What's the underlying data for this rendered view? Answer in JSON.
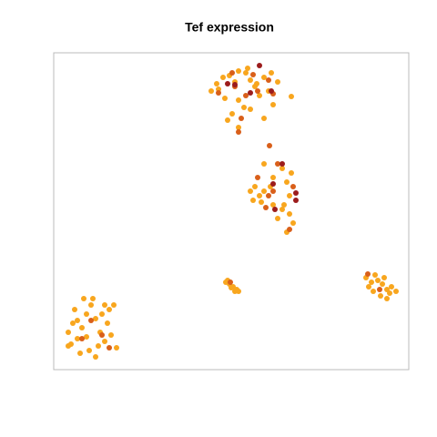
{
  "chart_data": {
    "type": "scatter",
    "title": "Tef expression",
    "xlim": [
      0,
      390
    ],
    "ylim": [
      0,
      348
    ],
    "series": [
      {
        "color": "#f8a61e",
        "x": [
          173,
          179,
          186,
          193,
          199,
          203,
          211,
          216,
          221,
          231,
          239,
          246,
          203,
          209,
          196,
          191,
          203,
          216,
          231,
          241,
          226,
          181,
          188,
          236,
          261,
          213,
          223,
          221,
          226,
          219,
          231,
          241,
          251,
          256,
          259,
          253,
          246,
          259,
          263,
          231,
          216,
          241,
          251,
          261,
          238,
          228,
          256,
          16,
          21,
          26,
          31,
          36,
          41,
          46,
          51,
          56,
          61,
          66,
          69,
          19,
          29,
          39,
          49,
          59,
          63,
          23,
          33,
          43,
          53,
          16,
          36,
          46,
          26,
          56,
          189,
          193,
          197,
          201,
          203,
          199,
          191,
          195,
          343,
          349,
          356,
          361,
          366,
          371,
          376,
          351,
          359,
          366,
          346,
          353,
          369,
          363
        ],
        "values": [
          306,
          314,
          321,
          323,
          316,
          328,
          326,
          318,
          311,
          321,
          326,
          316,
          296,
          288,
          281,
          274,
          266,
          286,
          276,
          291,
          301,
          308,
          298,
          306,
          300,
          331,
          314,
          201,
          191,
          186,
          196,
          211,
          221,
          206,
          191,
          181,
          166,
          171,
          161,
          226,
          196,
          181,
          176,
          216,
          201,
          184,
          151,
          41,
          51,
          34,
          46,
          61,
          71,
          56,
          41,
          31,
          66,
          71,
          24,
          28,
          18,
          21,
          26,
          51,
          38,
          66,
          78,
          78,
          61,
          26,
          36,
          14,
          54,
          71,
          96,
          94,
          91,
          88,
          86,
          86,
          98,
          90,
          101,
          96,
          98,
          94,
          88,
          91,
          86,
          86,
          81,
          78,
          91,
          104,
          84,
          101
        ]
      },
      {
        "color": "#d95f1a",
        "x": [
          181,
          199,
          211,
          224,
          236,
          206,
          219,
          241,
          196,
          203,
          224,
          236,
          246,
          263,
          241,
          237,
          259,
          233,
          31,
          53,
          41,
          61,
          358,
          345,
          194
        ],
        "values": [
          304,
          311,
          301,
          306,
          318,
          276,
          324,
          303,
          326,
          261,
          211,
          191,
          226,
          201,
          196,
          246,
          154,
          178,
          34,
          38,
          54,
          24,
          88,
          105,
          96
        ]
      },
      {
        "color": "#9c1c1c",
        "x": [
          226,
          199,
          216,
          239,
          191,
          241,
          266,
          251,
          266,
          243
        ],
        "values": [
          334,
          313,
          304,
          306,
          314,
          204,
          194,
          226,
          186,
          176
        ]
      }
    ]
  }
}
